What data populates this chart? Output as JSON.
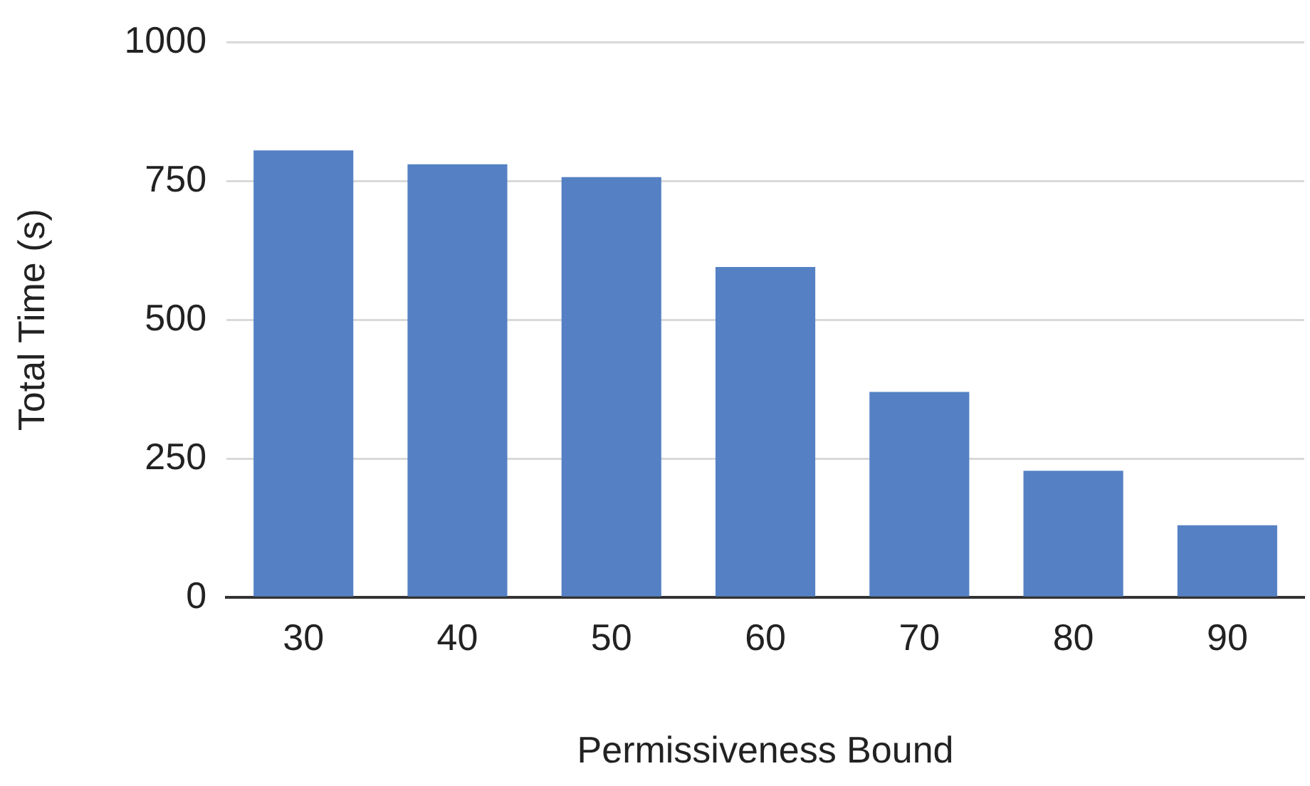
{
  "chart_data": {
    "type": "bar",
    "xlabel": "Permissiveness Bound",
    "ylabel": "Total Time (s)",
    "categories": [
      "30",
      "40",
      "50",
      "60",
      "70",
      "80",
      "90"
    ],
    "values": [
      805,
      780,
      757,
      595,
      370,
      228,
      130
    ],
    "color": "#5581c4",
    "ylim": [
      0,
      1000
    ],
    "yticks": [
      0,
      250,
      500,
      750,
      1000
    ],
    "grid": "y",
    "legend": false
  }
}
